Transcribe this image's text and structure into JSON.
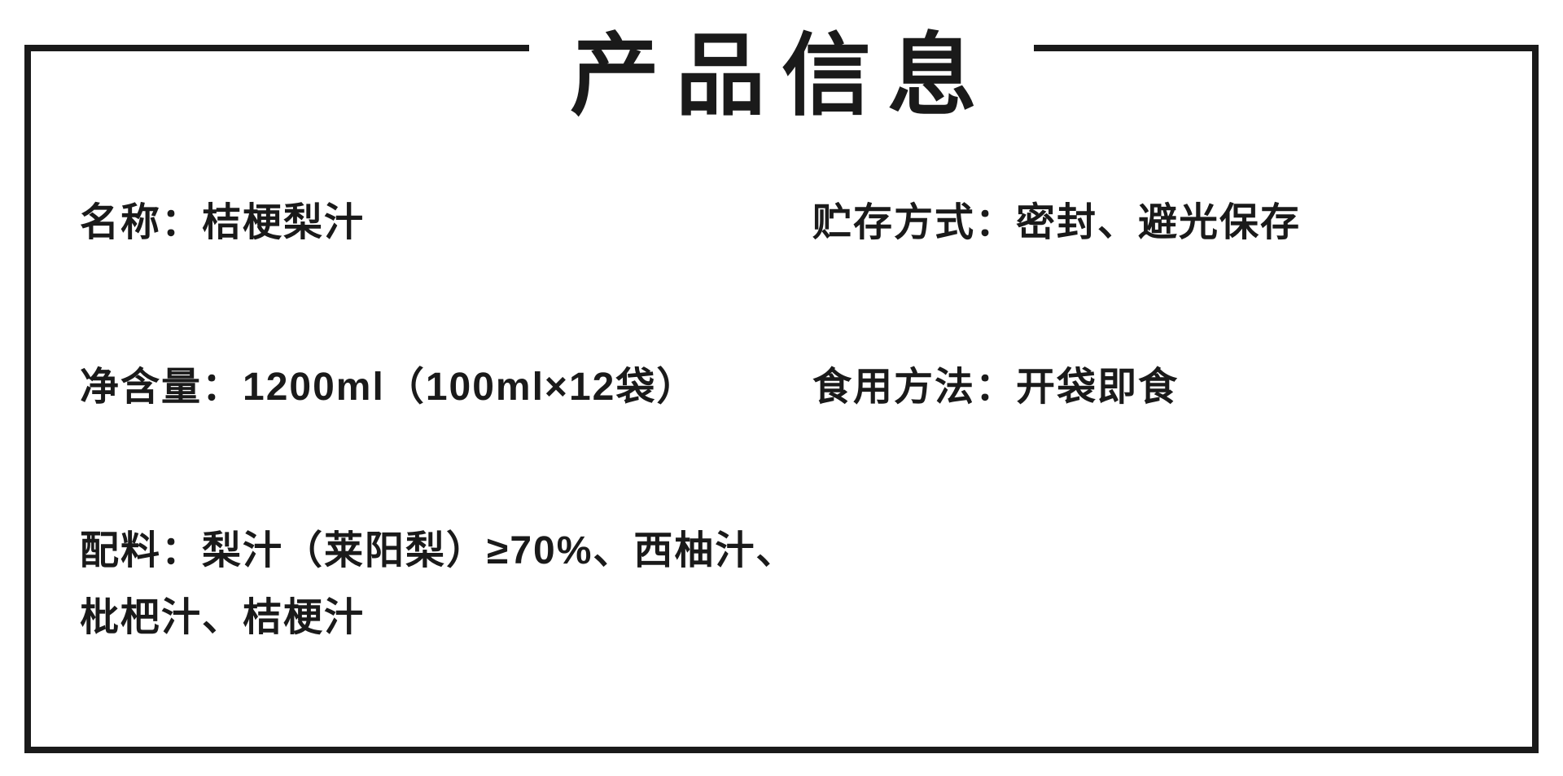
{
  "title": "产品信息",
  "left": {
    "name": {
      "label": "名称：",
      "value": "桔梗梨汁"
    },
    "netContent": {
      "label": "净含量：",
      "value": "1200ml（100ml×12袋）"
    },
    "ingredients": {
      "label": "配料：",
      "value": "梨汁（莱阳梨）≥70%、西柚汁、枇杷汁、桔梗汁"
    }
  },
  "right": {
    "storage": {
      "label": "贮存方式：",
      "value": "密封、避光保存"
    },
    "usage": {
      "label": "食用方法：",
      "value": "开袋即食"
    }
  },
  "styling": {
    "border_color": "#1a1a1a",
    "border_width": 8,
    "text_color": "#1a1a1a",
    "background_color": "#ffffff",
    "title_fontsize": 110,
    "title_fontweight": 900,
    "body_fontsize": 48,
    "body_fontweight": 700,
    "title_letter_spacing": 20,
    "row_gap": 120
  }
}
